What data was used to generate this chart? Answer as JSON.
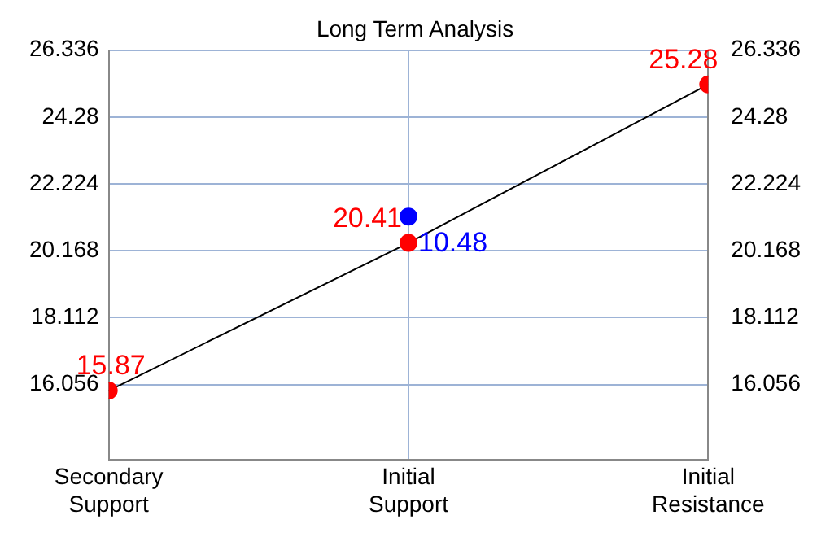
{
  "chart_data": {
    "type": "line",
    "title": "Long Term Analysis",
    "categories": [
      "Secondary Support",
      "Initial Support",
      "Initial Resistance"
    ],
    "ylim": [
      13.75,
      26.336
    ],
    "yticks": [
      16.056,
      18.112,
      20.168,
      22.224,
      24.28,
      26.336
    ],
    "y2lim": [
      13.75,
      26.336
    ],
    "y2ticks": [
      16.056,
      18.112,
      20.168,
      22.224,
      24.28,
      26.336
    ],
    "grid": true,
    "legend": false,
    "marker": "circle",
    "series": [
      {
        "color": "#000000",
        "colors": [
          "#ff0000",
          "#ff0000",
          "#ff0000"
        ],
        "values": [
          15.87,
          20.41,
          25.28
        ],
        "value_labels": [
          "15.87",
          "20.41",
          "25.28"
        ]
      },
      {
        "type": "scatter",
        "color": "#0000ff",
        "values": [
          null,
          21.22,
          null
        ]
      }
    ],
    "annotations": [
      {
        "text": "10.48",
        "x": "Initial Support",
        "y": 21.22
      }
    ]
  }
}
